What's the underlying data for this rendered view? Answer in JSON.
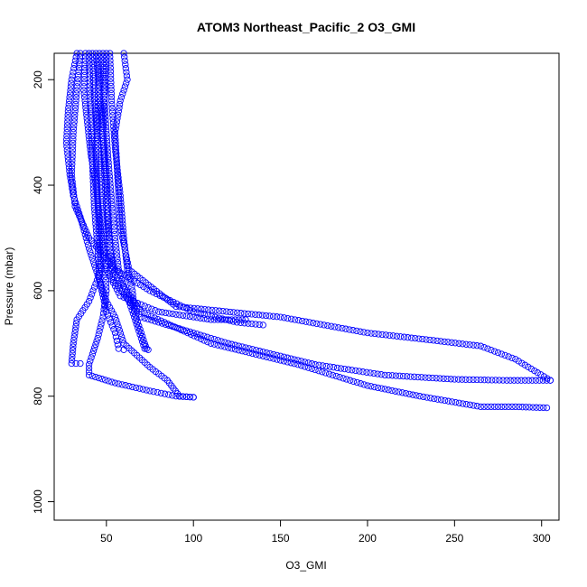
{
  "chart_data": {
    "type": "scatter",
    "title": "ATOM3 Northeast_Pacific_2 O3_GMI",
    "xlabel": "O3_GMI",
    "ylabel": "Pressure (mbar)",
    "xlim": [
      20,
      310
    ],
    "ylim": [
      1035,
      150
    ],
    "y_reversed": true,
    "x_ticks": [
      50,
      100,
      150,
      200,
      250,
      300
    ],
    "y_ticks": [
      200,
      400,
      600,
      800,
      1000
    ],
    "x_tick_labels": [
      "50",
      "100",
      "150",
      "200",
      "250",
      "300"
    ],
    "y_tick_labels": [
      "200",
      "400",
      "600",
      "800",
      "1000"
    ],
    "marker": "open-circle",
    "marker_color": "#0000ff",
    "grid": false,
    "legend": "none",
    "series": [
      {
        "points": [
          [
            33,
            150
          ],
          [
            30,
            200
          ],
          [
            28,
            260
          ],
          [
            27,
            320
          ],
          [
            29,
            380
          ],
          [
            31,
            420
          ],
          [
            35,
            460
          ],
          [
            40,
            520
          ],
          [
            45,
            570
          ],
          [
            50,
            620
          ],
          [
            55,
            650
          ],
          [
            60,
            700
          ],
          [
            75,
            745
          ],
          [
            85,
            770
          ],
          [
            92,
            800
          ],
          [
            100,
            802
          ]
        ]
      },
      {
        "points": [
          [
            38,
            150
          ],
          [
            37,
            220
          ],
          [
            39,
            280
          ],
          [
            41,
            340
          ],
          [
            44,
            400
          ],
          [
            46,
            460
          ],
          [
            48,
            520
          ],
          [
            50,
            560
          ],
          [
            58,
            610
          ],
          [
            80,
            640
          ],
          [
            110,
            655
          ],
          [
            130,
            655
          ]
        ]
      },
      {
        "points": [
          [
            44,
            150
          ],
          [
            46,
            220
          ],
          [
            48,
            300
          ],
          [
            50,
            380
          ],
          [
            51,
            450
          ],
          [
            52,
            520
          ],
          [
            54,
            580
          ],
          [
            70,
            650
          ],
          [
            120,
            700
          ],
          [
            170,
            740
          ],
          [
            210,
            760
          ],
          [
            250,
            768
          ],
          [
            280,
            770
          ],
          [
            305,
            770
          ]
        ]
      },
      {
        "points": [
          [
            60,
            150
          ],
          [
            62,
            200
          ],
          [
            58,
            240
          ],
          [
            55,
            300
          ],
          [
            56,
            360
          ],
          [
            57,
            420
          ],
          [
            58,
            480
          ],
          [
            63,
            560
          ],
          [
            90,
            630
          ],
          [
            150,
            650
          ],
          [
            200,
            680
          ],
          [
            240,
            695
          ],
          [
            265,
            705
          ],
          [
            285,
            730
          ],
          [
            305,
            770
          ]
        ]
      },
      {
        "points": [
          [
            50,
            150
          ],
          [
            49,
            230
          ],
          [
            48,
            300
          ],
          [
            49,
            380
          ],
          [
            50,
            440
          ],
          [
            52,
            520
          ],
          [
            55,
            570
          ],
          [
            70,
            640
          ],
          [
            110,
            700
          ],
          [
            160,
            740
          ],
          [
            200,
            780
          ],
          [
            230,
            800
          ],
          [
            265,
            820
          ],
          [
            285,
            820
          ],
          [
            303,
            822
          ]
        ]
      },
      {
        "points": [
          [
            42,
            150
          ],
          [
            43,
            230
          ],
          [
            45,
            320
          ],
          [
            47,
            400
          ],
          [
            48,
            480
          ],
          [
            49,
            540
          ],
          [
            50,
            600
          ],
          [
            48,
            650
          ],
          [
            45,
            690
          ],
          [
            42,
            720
          ],
          [
            40,
            740
          ],
          [
            40,
            760
          ],
          [
            55,
            775
          ],
          [
            75,
            790
          ],
          [
            90,
            800
          ],
          [
            100,
            802
          ]
        ]
      },
      {
        "points": [
          [
            46,
            150
          ],
          [
            45,
            250
          ],
          [
            44,
            350
          ],
          [
            45,
            430
          ],
          [
            46,
            500
          ],
          [
            47,
            560
          ],
          [
            40,
            620
          ],
          [
            33,
            655
          ],
          [
            31,
            700
          ],
          [
            30,
            738
          ],
          [
            35,
            738
          ]
        ]
      },
      {
        "points": [
          [
            40,
            150
          ],
          [
            41,
            260
          ],
          [
            42,
            360
          ],
          [
            43,
            440
          ],
          [
            45,
            520
          ],
          [
            46,
            580
          ],
          [
            50,
            640
          ],
          [
            55,
            680
          ],
          [
            57,
            710
          ],
          [
            60,
            712
          ]
        ]
      },
      {
        "points": [
          [
            48,
            150
          ],
          [
            49,
            250
          ],
          [
            51,
            350
          ],
          [
            53,
            430
          ],
          [
            55,
            500
          ],
          [
            57,
            560
          ],
          [
            62,
            610
          ],
          [
            66,
            650
          ],
          [
            70,
            690
          ],
          [
            72,
            710
          ],
          [
            74,
            712
          ]
        ]
      },
      {
        "points": [
          [
            52,
            150
          ],
          [
            53,
            240
          ],
          [
            55,
            330
          ],
          [
            58,
            420
          ],
          [
            60,
            500
          ],
          [
            62,
            560
          ],
          [
            65,
            600
          ],
          [
            66,
            640
          ],
          [
            70,
            680
          ],
          [
            72,
            700
          ],
          [
            73,
            710
          ]
        ]
      },
      {
        "points": [
          [
            35,
            150
          ],
          [
            33,
            220
          ],
          [
            31,
            300
          ],
          [
            30,
            380
          ],
          [
            32,
            440
          ],
          [
            40,
            500
          ],
          [
            55,
            560
          ],
          [
            75,
            600
          ],
          [
            100,
            640
          ],
          [
            125,
            660
          ],
          [
            140,
            665
          ]
        ]
      }
    ]
  }
}
